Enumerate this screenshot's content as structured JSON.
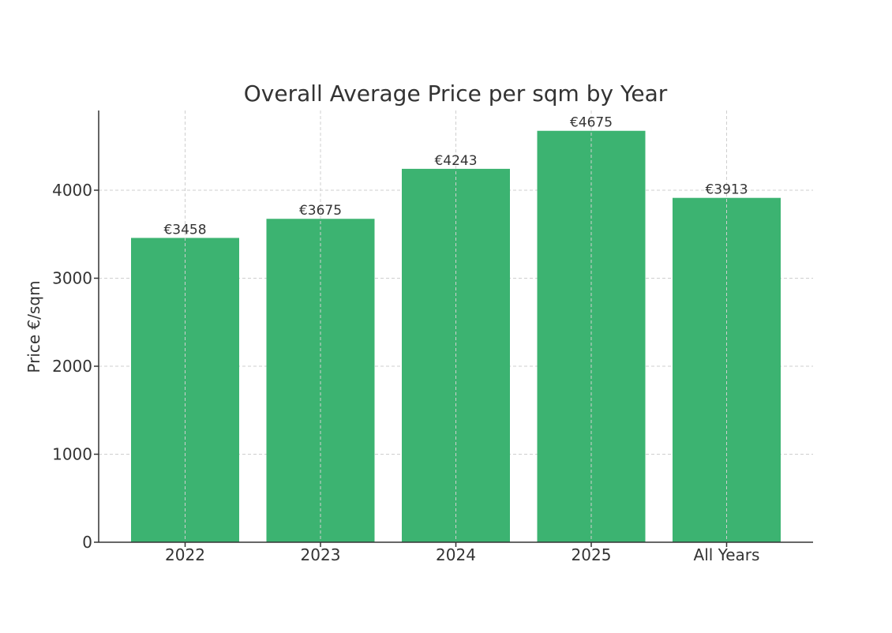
{
  "chart_data": {
    "type": "bar",
    "title": "Overall Average Price per sqm by Year",
    "xlabel": "",
    "ylabel": "Price €/sqm",
    "categories": [
      "2022",
      "2023",
      "2024",
      "2025",
      "All Years"
    ],
    "values": [
      3458,
      3675,
      4243,
      4675,
      3913
    ],
    "value_labels": [
      "€3458",
      "€3675",
      "€4243",
      "€4675",
      "€3913"
    ],
    "ylim": [
      0,
      4900
    ],
    "yticks": [
      0,
      1000,
      2000,
      3000,
      4000
    ],
    "ytick_labels": [
      "0",
      "1000",
      "2000",
      "3000",
      "4000"
    ],
    "grid": true,
    "bar_color": "#3cb371"
  }
}
